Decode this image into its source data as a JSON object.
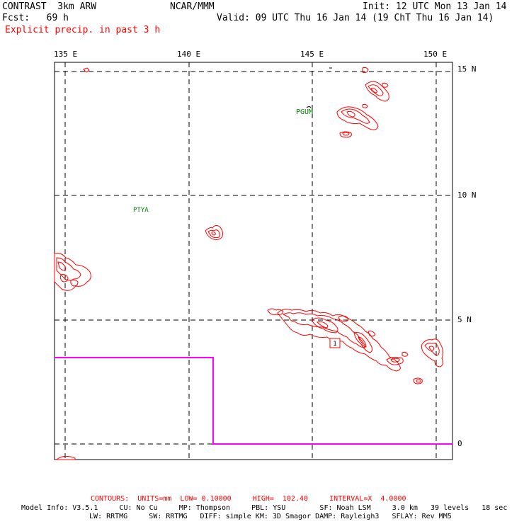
{
  "header": {
    "model": "CONTRAST  3km ARW",
    "org": "NCAR/MMM",
    "init": "Init: 12 UTC Mon 13 Jan 14",
    "fcst": "Fcst:   69 h",
    "valid": "Valid: 09 UTC Thu 16 Jan 14 (19 ChT Thu 16 Jan 14)",
    "field": "Explicit precip. in past 3 h"
  },
  "map": {
    "lon_labels": [
      "135 E",
      "140 E",
      "145 E",
      "150 E"
    ],
    "lat_labels": [
      "15 N",
      "10 N",
      "5 N",
      "0"
    ],
    "stations": [
      "PGUM",
      "PTYA"
    ],
    "high_marker": "1",
    "colors": {
      "precip_contour": "#ff0000",
      "domain_boundary": "#ff00ff",
      "grid": "#000000",
      "station": "#008000"
    }
  },
  "footer": {
    "contours": "CONTOURS:  UNITS=mm  LOW= 0.10000     HIGH=  102.40     INTERVAL=X  4.0000",
    "model_info": "Model Info: V3.5.1     CU: No Cu     MP: Thompson     PBL: YSU        SF: Noah LSM     3.0 km   39 levels   18 sec",
    "model_info2": "LW: RRTMG     SW: RRTMG   DIFF: simple KM: 3D Smagor DAMP: Rayleigh3   SFLAY: Rev MM5"
  }
}
